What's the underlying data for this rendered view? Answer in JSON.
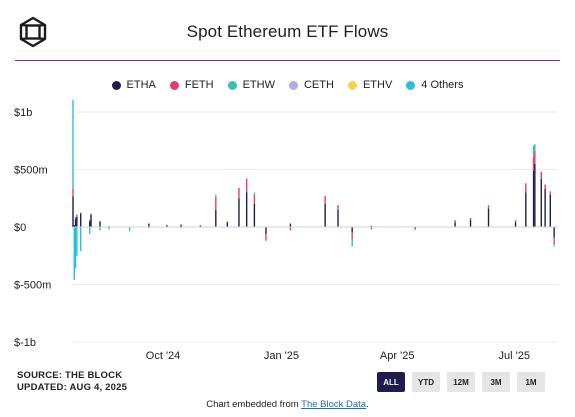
{
  "header": {
    "title": "Spot Ethereum ETF Flows",
    "logo_icon": "the-block-cube-logo-icon"
  },
  "legend": [
    {
      "label": "ETHA",
      "color": "#1f1d4d"
    },
    {
      "label": "FETH",
      "color": "#e0406a"
    },
    {
      "label": "ETHW",
      "color": "#3bbfb0"
    },
    {
      "label": "CETH",
      "color": "#b9a6e6"
    },
    {
      "label": "ETHV",
      "color": "#f2d34f"
    },
    {
      "label": "4 Others",
      "color": "#29c0d9"
    }
  ],
  "footer": {
    "source": "SOURCE: THE BLOCK",
    "updated": "UPDATED: AUG 4, 2025",
    "embed_prefix": "Chart embedded from",
    "embed_link": "The Block Data",
    "embed_suffix": "."
  },
  "range_buttons": [
    {
      "label": "ALL",
      "active": true
    },
    {
      "label": "YTD",
      "active": false
    },
    {
      "label": "12M",
      "active": false
    },
    {
      "label": "3M",
      "active": false
    },
    {
      "label": "1M",
      "active": false
    }
  ],
  "chart_data": {
    "type": "bar",
    "stacked": true,
    "unit": "USD",
    "title": "Spot Ethereum ETF Flows",
    "xlabel": "",
    "ylabel": "",
    "x_range": [
      "2024-07-23",
      "2025-08-04"
    ],
    "ylim": [
      -1000000000,
      1000000000
    ],
    "y_ticks": [
      {
        "value": 1000000000,
        "label": "$1b"
      },
      {
        "value": 500000000,
        "label": "$500m"
      },
      {
        "value": 0,
        "label": "$0"
      },
      {
        "value": -500000000,
        "label": "$-500m"
      },
      {
        "value": -1000000000,
        "label": "$-1b"
      }
    ],
    "x_ticks": [
      {
        "date": "2024-10-01",
        "label": "Oct '24"
      },
      {
        "date": "2025-01-01",
        "label": "Jan '25"
      },
      {
        "date": "2025-04-01",
        "label": "Apr '25"
      },
      {
        "date": "2025-07-01",
        "label": "Jul '25"
      }
    ],
    "grid": true,
    "legend_position": "top",
    "colors": {
      "ETHA": "#1f1d4d",
      "FETH": "#e0406a",
      "ETHW": "#3bbfb0",
      "CETH": "#b9a6e6",
      "ETHV": "#f2d34f",
      "4 Others": "#29c0d9"
    },
    "points": [
      {
        "date": "2024-07-23",
        "ETHA": 266000000,
        "FETH": 71000000,
        "ETHW": 204000000,
        "4 Others": 565000000
      },
      {
        "date": "2024-07-24",
        "ETHA": 17000000,
        "FETH": 0,
        "ETHW": 0,
        "4 Others": -460000000
      },
      {
        "date": "2024-07-25",
        "ETHA": 70000000,
        "FETH": 16000000,
        "ETHW": 0,
        "4 Others": -360000000
      },
      {
        "date": "2024-07-26",
        "ETHA": 89000000,
        "FETH": 19000000,
        "ETHW": 0,
        "4 Others": -250000000
      },
      {
        "date": "2024-07-29",
        "ETHA": 118000000,
        "FETH": 7000000,
        "ETHW": 0,
        "4 Others": -210000000
      },
      {
        "date": "2024-08-05",
        "ETHA": 47000000,
        "FETH": 16000000,
        "4 Others": -60000000
      },
      {
        "date": "2024-08-06",
        "ETHA": 110000000,
        "FETH": 0,
        "4 Others": 8000000
      },
      {
        "date": "2024-08-13",
        "ETHA": 50000000,
        "4 Others": -30000000
      },
      {
        "date": "2024-08-20",
        "ETHA": 7000000,
        "4 Others": -20000000
      },
      {
        "date": "2024-09-05",
        "ETHA": 0,
        "4 Others": -37000000
      },
      {
        "date": "2024-09-20",
        "ETHA": 30000000,
        "4 Others": -10000000
      },
      {
        "date": "2024-10-04",
        "ETHA": 15000000,
        "4 Others": 5000000
      },
      {
        "date": "2024-10-15",
        "ETHA": 20000000,
        "4 Others": -10000000
      },
      {
        "date": "2024-10-30",
        "ETHA": 12000000,
        "FETH": 4000000
      },
      {
        "date": "2024-11-11",
        "ETHA": 150000000,
        "FETH": 110000000,
        "ETHW": 20000000
      },
      {
        "date": "2024-11-20",
        "ETHA": 40000000,
        "FETH": 10000000
      },
      {
        "date": "2024-11-29",
        "ETHA": 250000000,
        "FETH": 90000000,
        "ETHW": 0
      },
      {
        "date": "2024-12-05",
        "ETHA": 300000000,
        "FETH": 120000000
      },
      {
        "date": "2024-12-11",
        "ETHA": 200000000,
        "FETH": 80000000,
        "ETHW": 20000000
      },
      {
        "date": "2024-12-20",
        "ETHA": -60000000,
        "FETH": -60000000
      },
      {
        "date": "2025-01-08",
        "ETHA": 30000000,
        "FETH": -30000000
      },
      {
        "date": "2025-02-04",
        "ETHA": 200000000,
        "FETH": 70000000
      },
      {
        "date": "2025-02-14",
        "ETHA": 150000000,
        "FETH": 40000000
      },
      {
        "date": "2025-02-25",
        "ETHA": -50000000,
        "FETH": -60000000,
        "4 Others": -60000000
      },
      {
        "date": "2025-03-12",
        "ETHA": 10000000,
        "FETH": -20000000
      },
      {
        "date": "2025-04-15",
        "ETHA": -10000000,
        "FETH": -15000000
      },
      {
        "date": "2025-05-16",
        "ETHA": 40000000,
        "FETH": 20000000
      },
      {
        "date": "2025-05-28",
        "ETHA": 60000000,
        "FETH": 20000000
      },
      {
        "date": "2025-06-11",
        "ETHA": 160000000,
        "FETH": 30000000
      },
      {
        "date": "2025-07-02",
        "ETHA": 40000000,
        "FETH": 20000000
      },
      {
        "date": "2025-07-10",
        "ETHA": 300000000,
        "FETH": 80000000
      },
      {
        "date": "2025-07-16",
        "ETHA": 490000000,
        "FETH": 120000000,
        "ETHW": 100000000
      },
      {
        "date": "2025-07-17",
        "ETHA": 550000000,
        "FETH": 110000000,
        "ETHW": 60000000
      },
      {
        "date": "2025-07-22",
        "ETHA": 420000000,
        "FETH": 60000000
      },
      {
        "date": "2025-07-25",
        "ETHA": 330000000,
        "FETH": 40000000
      },
      {
        "date": "2025-07-29",
        "ETHA": 280000000,
        "FETH": 30000000
      },
      {
        "date": "2025-08-01",
        "ETHA": -90000000,
        "FETH": -60000000,
        "4 Others": -20000000
      }
    ]
  }
}
